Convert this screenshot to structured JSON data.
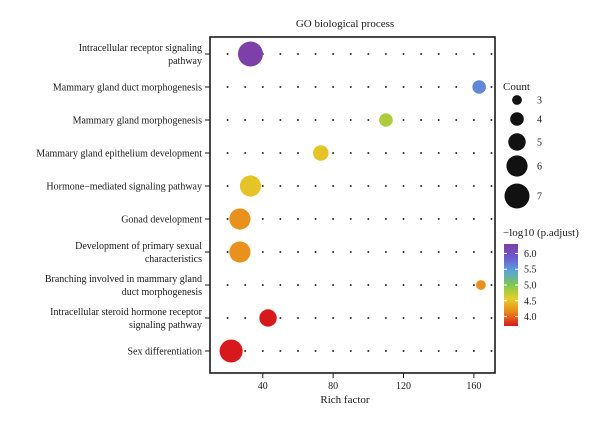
{
  "chart_data": {
    "type": "scatter",
    "title": "GO biological process",
    "xlabel": "Rich factor",
    "ylabel": "",
    "xlim": [
      10,
      172
    ],
    "xticks": [
      40,
      80,
      120,
      160
    ],
    "grid": "dotted",
    "categories": [
      "Intracellular receptor signaling\npathway",
      "Mammary gland duct morphogenesis",
      "Mammary gland morphogenesis",
      "Mammary gland epithelium development",
      "Hormone−mediated signaling pathway",
      "Gonad development",
      "Development of primary sexual\ncharacteristics",
      "Branching involved in mammary gland\nduct morphogenesis",
      "Intracellular steroid hormone receptor\nsignaling pathway",
      "Sex differentiation"
    ],
    "points": [
      {
        "category": "Intracellular receptor signaling\npathway",
        "x": 33,
        "count": 7,
        "neg_log10_padj": 6.3
      },
      {
        "category": "Mammary gland duct morphogenesis",
        "x": 163,
        "count": 4,
        "neg_log10_padj": 5.6
      },
      {
        "category": "Mammary gland morphogenesis",
        "x": 110,
        "count": 4,
        "neg_log10_padj": 4.8
      },
      {
        "category": "Mammary gland epithelium development",
        "x": 73,
        "count": 4.5,
        "neg_log10_padj": 4.5
      },
      {
        "category": "Hormone−mediated signaling pathway",
        "x": 33,
        "count": 6,
        "neg_log10_padj": 4.5
      },
      {
        "category": "Gonad development",
        "x": 27,
        "count": 6,
        "neg_log10_padj": 4.2
      },
      {
        "category": "Development of primary sexual\ncharacteristics",
        "x": 27,
        "count": 6,
        "neg_log10_padj": 4.2
      },
      {
        "category": "Branching involved in mammary gland\nduct morphogenesis",
        "x": 164,
        "count": 3,
        "neg_log10_padj": 4.2
      },
      {
        "category": "Intracellular steroid hormone receptor\nsignaling pathway",
        "x": 43,
        "count": 5,
        "neg_log10_padj": 3.7
      },
      {
        "category": "Sex differentiation",
        "x": 22,
        "count": 6.5,
        "neg_log10_padj": 3.7
      }
    ],
    "size_legend": {
      "title": "Count",
      "values": [
        3,
        4,
        5,
        6,
        7
      ]
    },
    "color_legend": {
      "title": "−log10 (p.adjust)",
      "ticks": [
        "6.0",
        "5.5",
        "5.0",
        "4.5",
        "4.0"
      ],
      "range": [
        3.7,
        6.3
      ],
      "stops": [
        "#d7191c",
        "#e8861a",
        "#e6cf2a",
        "#7ec850",
        "#5ba3d9",
        "#6a5bd0",
        "#7d3fa8"
      ]
    }
  }
}
